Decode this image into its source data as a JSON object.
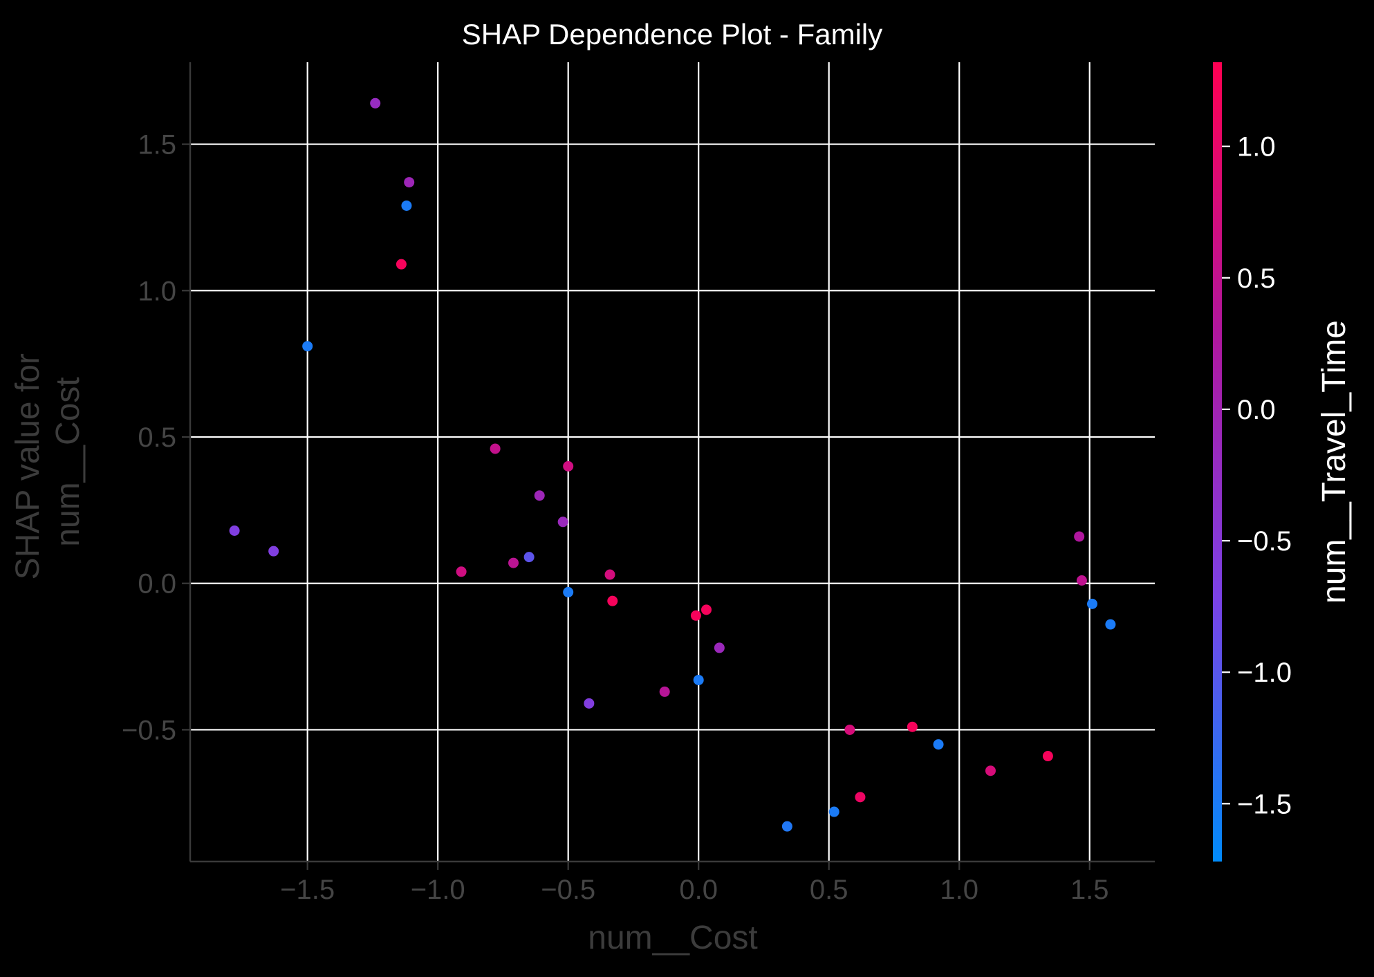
{
  "chart_data": {
    "type": "scatter",
    "title": "SHAP Dependence Plot - Family",
    "xlabel": "num__Cost",
    "ylabel": [
      "SHAP value for",
      "num__Cost"
    ],
    "xlim": [
      -1.95,
      1.75
    ],
    "ylim": [
      -0.95,
      1.78
    ],
    "xticks": [
      -1.5,
      -1.0,
      -0.5,
      0.0,
      0.5,
      1.0,
      1.5
    ],
    "xtick_labels": [
      "−1.5",
      "−1.0",
      "−0.5",
      "0.0",
      "0.5",
      "1.0",
      "1.5"
    ],
    "yticks": [
      -0.5,
      0.0,
      0.5,
      1.0,
      1.5
    ],
    "ytick_labels": [
      "−0.5",
      "0.0",
      "0.5",
      "1.0",
      "1.5"
    ],
    "grid": true,
    "colorbar": {
      "label": "num__Travel_Time",
      "range": [
        -1.72,
        1.32
      ],
      "ticks": [
        -1.5,
        -1.0,
        -0.5,
        0.0,
        0.5,
        1.0
      ],
      "tick_labels": [
        "−1.5",
        "−1.0",
        "−0.5",
        "0.0",
        "0.5",
        "1.0"
      ],
      "colors": [
        "#008bfa",
        "#7b42e6",
        "#b0179e",
        "#ff0052"
      ]
    },
    "points": [
      {
        "x": -1.78,
        "y": 0.18,
        "c": -0.62
      },
      {
        "x": -1.63,
        "y": 0.11,
        "c": -0.62
      },
      {
        "x": -1.5,
        "y": 0.81,
        "c": -1.5
      },
      {
        "x": -1.24,
        "y": 1.64,
        "c": -0.18
      },
      {
        "x": -1.11,
        "y": 1.37,
        "c": -0.05
      },
      {
        "x": -1.12,
        "y": 1.29,
        "c": -1.5
      },
      {
        "x": -1.14,
        "y": 1.09,
        "c": 1.2
      },
      {
        "x": -0.91,
        "y": 0.04,
        "c": 0.7
      },
      {
        "x": -0.78,
        "y": 0.46,
        "c": 0.55
      },
      {
        "x": -0.71,
        "y": 0.07,
        "c": 0.45
      },
      {
        "x": -0.65,
        "y": 0.09,
        "c": -0.95
      },
      {
        "x": -0.61,
        "y": 0.3,
        "c": -0.05
      },
      {
        "x": -0.52,
        "y": 0.21,
        "c": -0.12
      },
      {
        "x": -0.5,
        "y": 0.4,
        "c": 0.7
      },
      {
        "x": -0.5,
        "y": -0.03,
        "c": -1.5
      },
      {
        "x": -0.42,
        "y": -0.41,
        "c": -0.6
      },
      {
        "x": -0.34,
        "y": 0.03,
        "c": 0.75
      },
      {
        "x": -0.33,
        "y": -0.06,
        "c": 1.2
      },
      {
        "x": -0.13,
        "y": -0.37,
        "c": 0.4
      },
      {
        "x": -0.01,
        "y": -0.11,
        "c": 1.2
      },
      {
        "x": 0.0,
        "y": -0.33,
        "c": -1.5
      },
      {
        "x": 0.03,
        "y": -0.09,
        "c": 1.2
      },
      {
        "x": 0.08,
        "y": -0.22,
        "c": -0.1
      },
      {
        "x": 0.34,
        "y": -0.83,
        "c": -1.45
      },
      {
        "x": 0.52,
        "y": -0.78,
        "c": -1.5
      },
      {
        "x": 0.58,
        "y": -0.5,
        "c": 0.8
      },
      {
        "x": 0.62,
        "y": -0.73,
        "c": 1.1
      },
      {
        "x": 0.82,
        "y": -0.49,
        "c": 1.2
      },
      {
        "x": 0.92,
        "y": -0.55,
        "c": -1.5
      },
      {
        "x": 1.12,
        "y": -0.64,
        "c": 0.8
      },
      {
        "x": 1.34,
        "y": -0.59,
        "c": 1.2
      },
      {
        "x": 1.46,
        "y": 0.16,
        "c": 0.3
      },
      {
        "x": 1.47,
        "y": 0.01,
        "c": 0.5
      },
      {
        "x": 1.51,
        "y": -0.07,
        "c": -1.5
      },
      {
        "x": 1.58,
        "y": -0.14,
        "c": -1.5
      }
    ]
  }
}
